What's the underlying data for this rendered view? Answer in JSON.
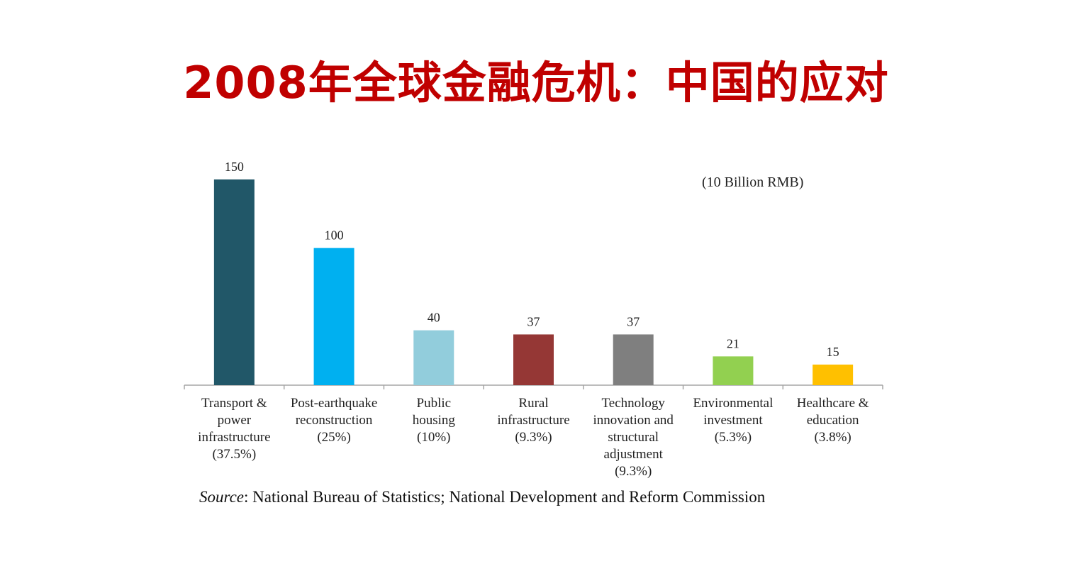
{
  "title": "2008年全球金融危机：中国的应对",
  "unit_note": "(10 Billion RMB)",
  "source": {
    "label": "Source",
    "text": ": National Bureau of Statistics; National Development and Reform Commission"
  },
  "chart_data": {
    "type": "bar",
    "title": "",
    "xlabel": "",
    "ylabel": "",
    "ylim": [
      0,
      150
    ],
    "grid": false,
    "categories": [
      [
        "Transport &",
        "power",
        "infrastructure",
        "(37.5%)"
      ],
      [
        "Post-earthquake",
        "reconstruction",
        "(25%)"
      ],
      [
        "Public",
        "housing",
        "(10%)"
      ],
      [
        "Rural",
        "infrastructure",
        "(9.3%)"
      ],
      [
        "Technology",
        "innovation and",
        "structural",
        "adjustment",
        "(9.3%)"
      ],
      [
        "Environmental",
        "investment",
        "(5.3%)"
      ],
      [
        "Healthcare &",
        "education",
        "(3.8%)"
      ]
    ],
    "values": [
      150,
      100,
      40,
      37,
      37,
      21,
      15
    ],
    "colors": [
      "#215768",
      "#00b0f0",
      "#92cddc",
      "#953735",
      "#7f7f7f",
      "#92d050",
      "#ffc000"
    ]
  }
}
